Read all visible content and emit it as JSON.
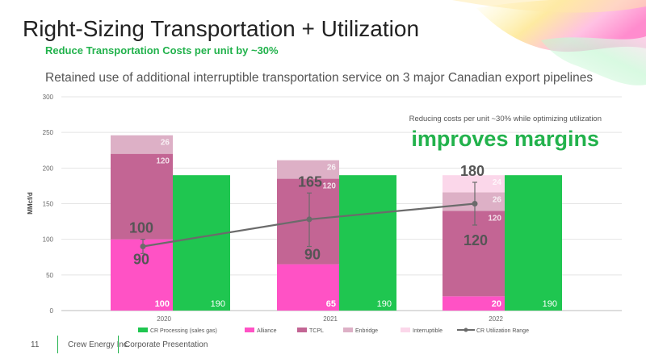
{
  "slide": {
    "title": "Right-Sizing Transportation + Utilization",
    "subtitle": "Reduce Transportation Costs per unit by ~30%",
    "description": "Retained use of additional interruptible transportation service on 3 major Canadian export pipelines",
    "callout_small": "Reducing costs per unit ~30% while optimizing utilization",
    "callout_large": "improves margins",
    "footer": {
      "page_number": "11",
      "company": "Crew Energy Inc.",
      "presentation": "Corporate Presentation"
    }
  },
  "colors": {
    "accent_green": "#22b24c",
    "processing": "#1fc650",
    "alliance": "#ff52c5",
    "tcpl": "#c36594",
    "enbridge": "#ddb0c6",
    "interruptible": "#fbd7ea",
    "utilization": "#6b6b6b"
  },
  "chart_data": {
    "type": "bar",
    "categories": [
      "2020",
      "2021",
      "2022"
    ],
    "ylabel": "MMcf/d",
    "ylim": [
      0,
      300
    ],
    "yticks": [
      0,
      50,
      100,
      150,
      200,
      250,
      300
    ],
    "grid": true,
    "legend_position": "bottom",
    "stacked_series": [
      {
        "name": "Alliance",
        "color_key": "alliance",
        "values": [
          100,
          65,
          20
        ]
      },
      {
        "name": "TCPL",
        "color_key": "tcpl",
        "values": [
          120,
          120,
          120
        ]
      },
      {
        "name": "Enbridge",
        "color_key": "enbridge",
        "values": [
          26,
          26,
          26
        ]
      },
      {
        "name": "Interruptible",
        "color_key": "interruptible",
        "values": [
          0,
          0,
          24
        ]
      }
    ],
    "side_series": {
      "name": "CR Processing (sales gas)",
      "color_key": "processing",
      "values": [
        190,
        190,
        190
      ]
    },
    "utilization": {
      "name": "CR Utilization Range",
      "mid": [
        90,
        128,
        150
      ],
      "low": [
        90,
        90,
        120
      ],
      "high": [
        100,
        165,
        180
      ],
      "low_labels": [
        "90",
        "90",
        "120"
      ],
      "high_labels": [
        "100",
        "165",
        "180"
      ],
      "whisker_low": [
        80,
        90,
        120
      ],
      "whisker_high": [
        100,
        165,
        180
      ]
    },
    "segment_labels": [
      {
        "category": 0,
        "series": "Alliance",
        "text": "100"
      },
      {
        "category": 0,
        "series": "TCPL",
        "text": "120"
      },
      {
        "category": 0,
        "series": "Enbridge",
        "text": "26"
      },
      {
        "category": 1,
        "series": "Alliance",
        "text": "65"
      },
      {
        "category": 1,
        "series": "TCPL",
        "text": "120"
      },
      {
        "category": 1,
        "series": "Enbridge",
        "text": "26"
      },
      {
        "category": 2,
        "series": "Alliance",
        "text": "20"
      },
      {
        "category": 2,
        "series": "TCPL",
        "text": "120"
      },
      {
        "category": 2,
        "series": "Enbridge",
        "text": "26"
      },
      {
        "category": 2,
        "series": "Interruptible",
        "text": "24"
      }
    ],
    "processing_labels": [
      "190",
      "190",
      "190"
    ],
    "legend": [
      "CR Processing (sales gas)",
      "Alliance",
      "TCPL",
      "Enbridge",
      "Interruptible",
      "CR Utilization Range"
    ]
  }
}
